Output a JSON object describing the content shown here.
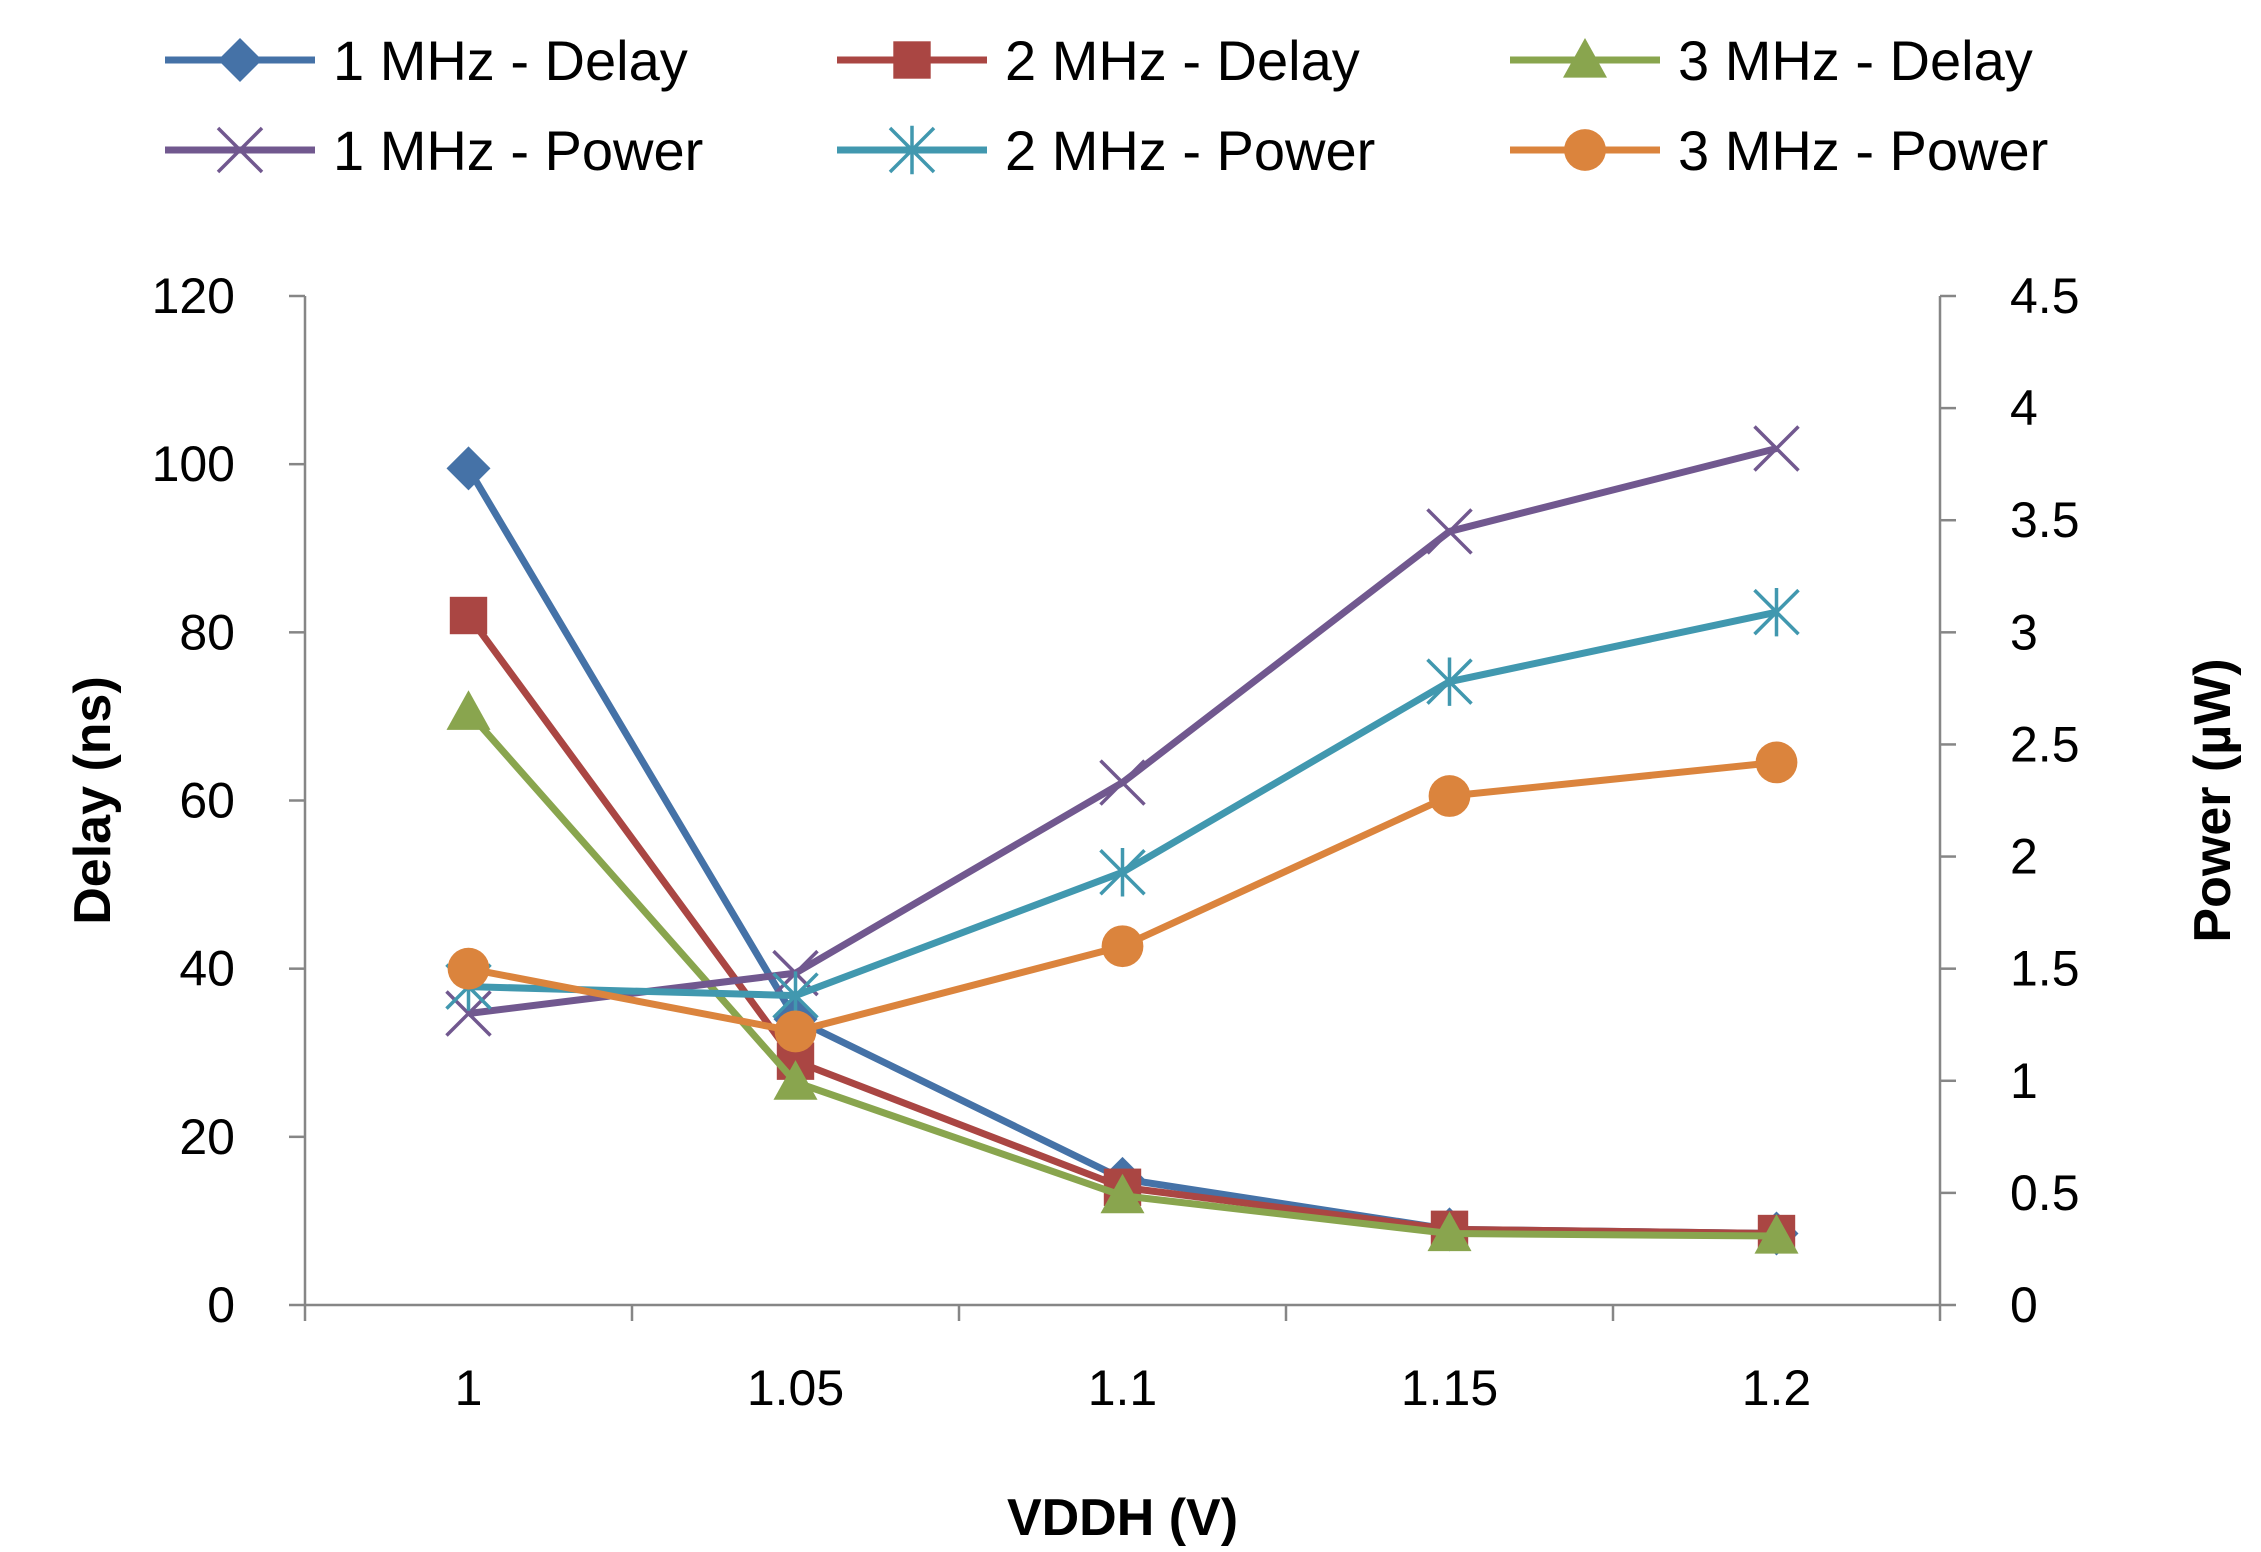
{
  "chart_data": {
    "type": "line",
    "title": "",
    "xlabel": "VDDH (V)",
    "ylabel": "Delay (ns)",
    "y2label": "Power (µW)",
    "categories": [
      "1",
      "1.05",
      "1.1",
      "1.15",
      "1.2"
    ],
    "ylim": [
      0,
      120
    ],
    "yticks": [
      "0",
      "20",
      "40",
      "60",
      "80",
      "100",
      "120"
    ],
    "y2lim": [
      0,
      4.5
    ],
    "y2ticks": [
      "0",
      "0.5",
      "1",
      "1.5",
      "2",
      "2.5",
      "3",
      "3.5",
      "4",
      "4.5"
    ],
    "grid": false,
    "legend_position": "top",
    "series": [
      {
        "name": "1  MHz - Delay",
        "axis": "left",
        "color": "#4572A7",
        "marker": "diamond",
        "values": [
          99.5,
          34,
          15,
          9,
          8.5
        ]
      },
      {
        "name": "2 MHz - Delay",
        "axis": "left",
        "color": "#AA4643",
        "marker": "square",
        "values": [
          82,
          29,
          14,
          9,
          8.5
        ]
      },
      {
        "name": "3  MHz - Delay",
        "axis": "left",
        "color": "#89A54E",
        "marker": "triangle",
        "values": [
          70.5,
          26.5,
          13,
          8.5,
          8.2
        ]
      },
      {
        "name": "1 MHz - Power",
        "axis": "right",
        "color": "#71588F",
        "marker": "x",
        "values": [
          1.3,
          1.48,
          2.33,
          3.45,
          3.82
        ]
      },
      {
        "name": "2 MHz - Power",
        "axis": "right",
        "color": "#4198AF",
        "marker": "star",
        "values": [
          1.42,
          1.38,
          1.93,
          2.78,
          3.09
        ]
      },
      {
        "name": "3 MHz - Power",
        "axis": "right",
        "color": "#DB843D",
        "marker": "circle",
        "values": [
          1.5,
          1.22,
          1.6,
          2.27,
          2.42
        ]
      }
    ]
  }
}
